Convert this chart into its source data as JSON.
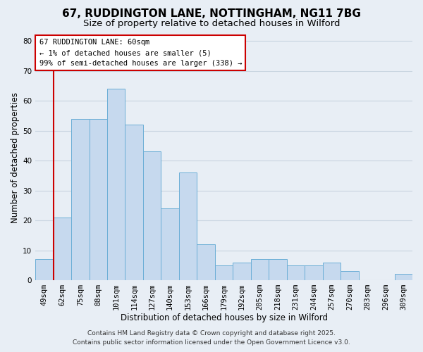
{
  "title": "67, RUDDINGTON LANE, NOTTINGHAM, NG11 7BG",
  "subtitle": "Size of property relative to detached houses in Wilford",
  "xlabel": "Distribution of detached houses by size in Wilford",
  "ylabel": "Number of detached properties",
  "categories": [
    "49sqm",
    "62sqm",
    "75sqm",
    "88sqm",
    "101sqm",
    "114sqm",
    "127sqm",
    "140sqm",
    "153sqm",
    "166sqm",
    "179sqm",
    "192sqm",
    "205sqm",
    "218sqm",
    "231sqm",
    "244sqm",
    "257sqm",
    "270sqm",
    "283sqm",
    "296sqm",
    "309sqm"
  ],
  "values": [
    7,
    21,
    54,
    54,
    64,
    52,
    43,
    24,
    36,
    12,
    5,
    6,
    7,
    7,
    5,
    5,
    6,
    3,
    0,
    0,
    2
  ],
  "bar_color": "#c6d9ee",
  "bar_edge_color": "#6baed6",
  "highlight_line_color": "#cc0000",
  "ylim": [
    0,
    82
  ],
  "yticks": [
    0,
    10,
    20,
    30,
    40,
    50,
    60,
    70,
    80
  ],
  "annotation_title": "67 RUDDINGTON LANE: 60sqm",
  "annotation_line1": "← 1% of detached houses are smaller (5)",
  "annotation_line2": "99% of semi-detached houses are larger (338) →",
  "annotation_box_color": "#ffffff",
  "annotation_box_edge": "#cc0000",
  "bg_color": "#e8eef5",
  "grid_color": "#c8d4e0",
  "footer_line1": "Contains HM Land Registry data © Crown copyright and database right 2025.",
  "footer_line2": "Contains public sector information licensed under the Open Government Licence v3.0.",
  "title_fontsize": 11,
  "subtitle_fontsize": 9.5,
  "axis_label_fontsize": 8.5,
  "tick_fontsize": 7.5,
  "annotation_fontsize": 7.5,
  "footer_fontsize": 6.5
}
